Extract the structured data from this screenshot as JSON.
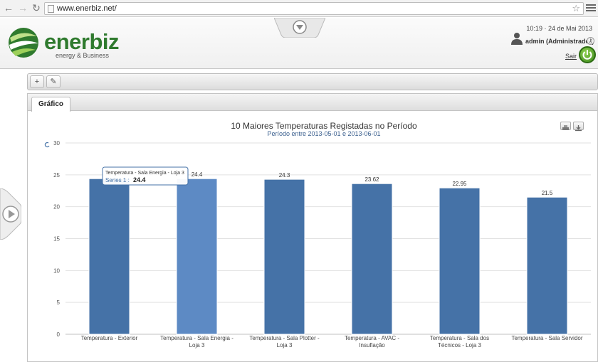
{
  "browser": {
    "url": "www.enerbiz.net/"
  },
  "header": {
    "logo_name": "enerbiz",
    "logo_tagline": "energy & Business",
    "datetime": "10:19 · 24 de Mai 2013",
    "user": "admin (Administrador)",
    "logout_label": "Sair",
    "brand_color": "#2f7a2e"
  },
  "toolbar": {
    "add_label": "+",
    "settings_label": "✎"
  },
  "tabs": {
    "active_label": "Gráfico"
  },
  "chart_data": {
    "type": "bar",
    "title": "10 Maiores Temperaturas Registadas no Período",
    "subtitle": "Período entre 2013-05-01 e 2013-06-01",
    "categories": [
      [
        "Temperatura - Exterior"
      ],
      [
        "Temperatura - Sala Energia -",
        "Loja 3"
      ],
      [
        "Temperatura - Sala Plotter -",
        "Loja 3"
      ],
      [
        "Temperatura - AVAC -",
        "Insuflação"
      ],
      [
        "Temperatura - Sala dos",
        "Técnicos - Loja 3"
      ],
      [
        "Temperatura - Sala Servidor"
      ]
    ],
    "values": [
      24.4,
      24.4,
      24.3,
      23.62,
      22.95,
      21.5
    ],
    "value_labels": [
      "",
      "24.4",
      "24.3",
      "23.62",
      "22.95",
      "21.5"
    ],
    "ylim": [
      0,
      30
    ],
    "yticks": [
      0,
      5,
      10,
      15,
      20,
      25,
      30
    ],
    "grid": true,
    "legend": "none",
    "bar_color": "#4572a7",
    "hover_bar_color": "#5d8ac4",
    "hovered_index": 1,
    "tooltip": {
      "title": "Temperatura - Sala Energia - Loja 3",
      "series_label": "Series 1 :",
      "value": "24.4"
    }
  }
}
